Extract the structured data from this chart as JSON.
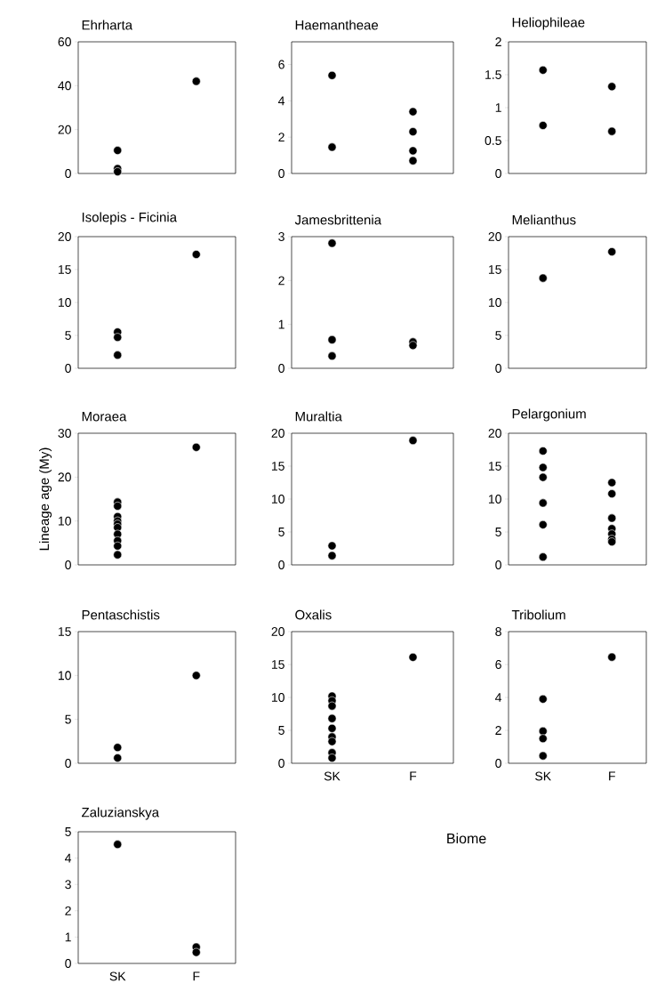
{
  "chart_data": [
    {
      "type": "scatter",
      "title": "Ehrharta",
      "categories": [
        "SK",
        "F"
      ],
      "ylim": [
        0,
        60
      ],
      "yticks": [
        0,
        20,
        40,
        60
      ],
      "marker": "circle",
      "tick_labels": "y",
      "series": [
        {
          "color": "#000000",
          "x": [
            "SK",
            "SK",
            "SK",
            "F"
          ],
          "values": [
            10.5,
            2.2,
            0.8,
            42
          ]
        }
      ]
    },
    {
      "type": "scatter",
      "title": "Haemantheae",
      "categories": [
        "SK",
        "F"
      ],
      "ylim": [
        0,
        7.25
      ],
      "yticks": [
        0,
        2,
        4,
        6
      ],
      "marker": "circle",
      "tick_labels": "y",
      "series": [
        {
          "color": "#000000",
          "x": [
            "SK",
            "SK",
            "F",
            "F",
            "F",
            "F"
          ],
          "values": [
            5.4,
            1.45,
            3.4,
            2.3,
            1.25,
            0.7
          ]
        }
      ]
    },
    {
      "type": "scatter",
      "title": "Heliophileae",
      "categories": [
        "SK",
        "F"
      ],
      "ylim": [
        0,
        2
      ],
      "yticks": [
        0,
        0.5,
        1,
        1.5,
        2
      ],
      "marker": "circle",
      "tick_labels": "y",
      "series": [
        {
          "color": "#000000",
          "x": [
            "SK",
            "SK",
            "F",
            "F"
          ],
          "values": [
            1.57,
            0.73,
            1.32,
            0.64
          ]
        }
      ]
    },
    {
      "type": "scatter",
      "title": "Isolepis - Ficinia",
      "categories": [
        "SK",
        "F"
      ],
      "ylim": [
        0,
        20
      ],
      "yticks": [
        0,
        5,
        10,
        15,
        20
      ],
      "marker": "circle",
      "tick_labels": "y",
      "series": [
        {
          "color": "#000000",
          "x": [
            "SK",
            "SK",
            "SK",
            "F"
          ],
          "values": [
            5.5,
            4.7,
            2.0,
            17.3
          ]
        }
      ]
    },
    {
      "type": "scatter",
      "title": "Jamesbrittenia",
      "categories": [
        "SK",
        "F"
      ],
      "ylim": [
        0,
        3
      ],
      "yticks": [
        0,
        1,
        2,
        3
      ],
      "marker": "circle",
      "tick_labels": "y",
      "series": [
        {
          "color": "#000000",
          "x": [
            "SK",
            "SK",
            "SK",
            "F",
            "F"
          ],
          "values": [
            2.85,
            0.65,
            0.28,
            0.6,
            0.52
          ]
        }
      ]
    },
    {
      "type": "scatter",
      "title": "Melianthus",
      "categories": [
        "SK",
        "F"
      ],
      "ylim": [
        0,
        20
      ],
      "yticks": [
        0,
        5,
        10,
        15,
        20
      ],
      "marker": "circle",
      "tick_labels": "y",
      "series": [
        {
          "color": "#000000",
          "x": [
            "SK",
            "F"
          ],
          "values": [
            13.7,
            17.7
          ]
        }
      ]
    },
    {
      "type": "scatter",
      "title": "Moraea",
      "ylabel": "Lineage age (My)",
      "categories": [
        "SK",
        "F"
      ],
      "ylim": [
        0,
        30
      ],
      "yticks": [
        0,
        10,
        20,
        30
      ],
      "marker": "circle",
      "tick_labels": "y",
      "series": [
        {
          "color": "#000000",
          "x": [
            "SK",
            "SK",
            "SK",
            "SK",
            "SK",
            "SK",
            "SK",
            "SK",
            "SK",
            "SK",
            "F"
          ],
          "values": [
            14.3,
            13.4,
            11,
            10,
            9.3,
            8.5,
            7,
            5.5,
            4.3,
            2.3,
            26.8
          ]
        }
      ]
    },
    {
      "type": "scatter",
      "title": "Muraltia",
      "categories": [
        "SK",
        "F"
      ],
      "ylim": [
        0,
        20
      ],
      "yticks": [
        0,
        5,
        10,
        15,
        20
      ],
      "marker": "circle",
      "tick_labels": "y",
      "series": [
        {
          "color": "#000000",
          "x": [
            "SK",
            "SK",
            "F"
          ],
          "values": [
            2.9,
            1.4,
            18.9
          ]
        }
      ]
    },
    {
      "type": "scatter",
      "title": "Pelargonium",
      "categories": [
        "SK",
        "F"
      ],
      "ylim": [
        0,
        20
      ],
      "yticks": [
        0,
        5,
        10,
        15,
        20
      ],
      "marker": "circle",
      "tick_labels": "y",
      "series": [
        {
          "color": "#000000",
          "x": [
            "SK",
            "SK",
            "SK",
            "SK",
            "SK",
            "SK",
            "F",
            "F",
            "F",
            "F",
            "F",
            "F",
            "F"
          ],
          "values": [
            17.3,
            14.8,
            13.3,
            9.4,
            6.1,
            1.2,
            12.5,
            10.8,
            7.1,
            5.5,
            4.7,
            3.9,
            3.5
          ]
        }
      ]
    },
    {
      "type": "scatter",
      "title": "Pentaschistis",
      "categories": [
        "SK",
        "F"
      ],
      "ylim": [
        0,
        15
      ],
      "yticks": [
        0,
        5,
        10,
        15
      ],
      "marker": "circle",
      "tick_labels": "y",
      "series": [
        {
          "color": "#000000",
          "x": [
            "SK",
            "SK",
            "F"
          ],
          "values": [
            1.8,
            0.6,
            10
          ]
        }
      ]
    },
    {
      "type": "scatter",
      "title": "Oxalis",
      "xlabel": "Biome",
      "categories": [
        "SK",
        "F"
      ],
      "ylim": [
        0,
        20
      ],
      "yticks": [
        0,
        5,
        10,
        15,
        20
      ],
      "marker": "circle",
      "series": [
        {
          "color": "#000000",
          "x": [
            "SK",
            "SK",
            "SK",
            "SK",
            "SK",
            "SK",
            "SK",
            "SK",
            "SK",
            "F"
          ],
          "values": [
            10.2,
            9.5,
            8.7,
            6.8,
            5.3,
            4,
            3.3,
            1.6,
            0.8,
            16.1
          ]
        }
      ]
    },
    {
      "type": "scatter",
      "title": "Tribolium",
      "categories": [
        "SK",
        "F"
      ],
      "ylim": [
        0,
        8
      ],
      "yticks": [
        0,
        2,
        4,
        6,
        8
      ],
      "marker": "circle",
      "series": [
        {
          "color": "#000000",
          "x": [
            "SK",
            "SK",
            "SK",
            "SK",
            "F"
          ],
          "values": [
            3.9,
            1.95,
            1.5,
            0.45,
            6.45
          ]
        }
      ]
    },
    {
      "type": "scatter",
      "title": "Zaluzianskya",
      "categories": [
        "SK",
        "F"
      ],
      "ylim": [
        0,
        5
      ],
      "yticks": [
        0,
        1,
        2,
        3,
        4,
        5
      ],
      "marker": "circle",
      "series": [
        {
          "color": "#000000",
          "x": [
            "SK",
            "F",
            "F"
          ],
          "values": [
            4.52,
            0.62,
            0.42
          ]
        }
      ]
    }
  ]
}
